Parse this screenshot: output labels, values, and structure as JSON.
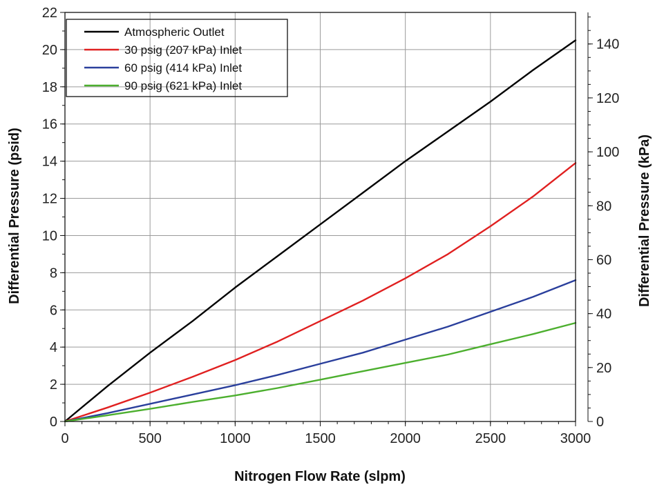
{
  "chart_data": {
    "type": "line",
    "xlabel": "Nitrogen Flow Rate (slpm)",
    "ylabel": "Differential Pressure (psid)",
    "y2label": "Differential Pressure (kPa)",
    "xlim": [
      0,
      3000
    ],
    "ylim": [
      0,
      22
    ],
    "y2lim": [
      0,
      151.7
    ],
    "xticks": [
      0,
      500,
      1000,
      1500,
      2000,
      2500,
      3000
    ],
    "yticks": [
      0,
      2,
      4,
      6,
      8,
      10,
      12,
      14,
      16,
      18,
      20,
      22
    ],
    "y2ticks": [
      0,
      20,
      40,
      60,
      80,
      100,
      120,
      140
    ],
    "grid": true,
    "legend_position": "top-left",
    "series": [
      {
        "name": "Atmospheric Outlet",
        "color": "#000000",
        "x": [
          0,
          250,
          500,
          750,
          1000,
          1250,
          1500,
          1750,
          2000,
          2250,
          2500,
          2750,
          3000
        ],
        "y": [
          0,
          1.9,
          3.7,
          5.4,
          7.2,
          8.9,
          10.6,
          12.3,
          14.0,
          15.6,
          17.2,
          18.9,
          20.5
        ]
      },
      {
        "name": "30 psig (207 kPa) Inlet",
        "color": "#e02020",
        "x": [
          0,
          250,
          500,
          750,
          1000,
          1250,
          1500,
          1750,
          2000,
          2250,
          2500,
          2750,
          3000
        ],
        "y": [
          0,
          0.75,
          1.55,
          2.4,
          3.3,
          4.3,
          5.4,
          6.5,
          7.7,
          9.0,
          10.5,
          12.1,
          13.9
        ]
      },
      {
        "name": "60 psig (414 kPa) Inlet",
        "color": "#2a3f9c",
        "x": [
          0,
          250,
          500,
          750,
          1000,
          1250,
          1500,
          1750,
          2000,
          2250,
          2500,
          2750,
          3000
        ],
        "y": [
          0,
          0.45,
          0.95,
          1.45,
          1.95,
          2.5,
          3.1,
          3.7,
          4.4,
          5.1,
          5.9,
          6.7,
          7.6
        ]
      },
      {
        "name": "90 psig (621 kPa) Inlet",
        "color": "#4caf2e",
        "x": [
          0,
          250,
          500,
          750,
          1000,
          1250,
          1500,
          1750,
          2000,
          2250,
          2500,
          2750,
          3000
        ],
        "y": [
          0,
          0.33,
          0.68,
          1.05,
          1.4,
          1.8,
          2.25,
          2.7,
          3.15,
          3.6,
          4.15,
          4.7,
          5.3
        ]
      }
    ]
  }
}
